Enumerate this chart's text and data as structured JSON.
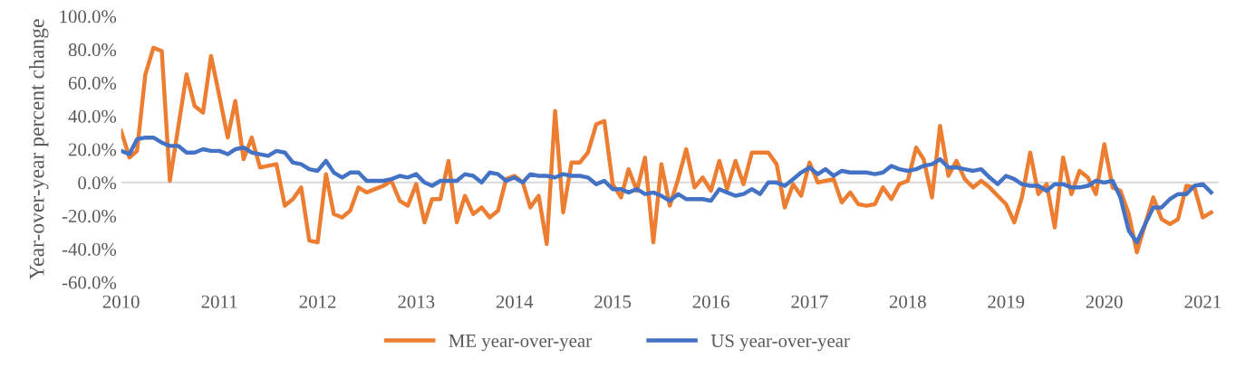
{
  "chart_data": {
    "type": "line",
    "ylabel": "Year-over-year percent change",
    "x": [
      "2010-01",
      "2010-02",
      "2010-03",
      "2010-04",
      "2010-05",
      "2010-06",
      "2010-07",
      "2010-08",
      "2010-09",
      "2010-10",
      "2010-11",
      "2010-12",
      "2011-01",
      "2011-02",
      "2011-03",
      "2011-04",
      "2011-05",
      "2011-06",
      "2011-07",
      "2011-08",
      "2011-09",
      "2011-10",
      "2011-11",
      "2011-12",
      "2012-01",
      "2012-02",
      "2012-03",
      "2012-04",
      "2012-05",
      "2012-06",
      "2012-07",
      "2012-08",
      "2012-09",
      "2012-10",
      "2012-11",
      "2012-12",
      "2013-01",
      "2013-02",
      "2013-03",
      "2013-04",
      "2013-05",
      "2013-06",
      "2013-07",
      "2013-08",
      "2013-09",
      "2013-10",
      "2013-11",
      "2013-12",
      "2014-01",
      "2014-02",
      "2014-03",
      "2014-04",
      "2014-05",
      "2014-06",
      "2014-07",
      "2014-08",
      "2014-09",
      "2014-10",
      "2014-11",
      "2014-12",
      "2015-01",
      "2015-02",
      "2015-03",
      "2015-04",
      "2015-05",
      "2015-06",
      "2015-07",
      "2015-08",
      "2015-09",
      "2015-10",
      "2015-11",
      "2015-12",
      "2016-01",
      "2016-02",
      "2016-03",
      "2016-04",
      "2016-05",
      "2016-06",
      "2016-07",
      "2016-08",
      "2016-09",
      "2016-10",
      "2016-11",
      "2016-12",
      "2017-01",
      "2017-02",
      "2017-03",
      "2017-04",
      "2017-05",
      "2017-06",
      "2017-07",
      "2017-08",
      "2017-09",
      "2017-10",
      "2017-11",
      "2017-12",
      "2018-01",
      "2018-02",
      "2018-03",
      "2018-04",
      "2018-05",
      "2018-06",
      "2018-07",
      "2018-08",
      "2018-09",
      "2018-10",
      "2018-11",
      "2018-12",
      "2019-01",
      "2019-02",
      "2019-03",
      "2019-04",
      "2019-05",
      "2019-06",
      "2019-07",
      "2019-08",
      "2019-09",
      "2019-10",
      "2019-11",
      "2019-12",
      "2020-01",
      "2020-02",
      "2020-03",
      "2020-04",
      "2020-05",
      "2020-06",
      "2020-07",
      "2020-08",
      "2020-09",
      "2020-10",
      "2020-11",
      "2020-12",
      "2021-01",
      "2021-02"
    ],
    "series": [
      {
        "name": "ME year-over-year",
        "color": "#ed7d31",
        "values": [
          31,
          15,
          19,
          65,
          81,
          79,
          1,
          33,
          65,
          46,
          42,
          76,
          52,
          27,
          49,
          14,
          27,
          9,
          10,
          11,
          -14,
          -10,
          -3,
          -35,
          -36,
          5,
          -19,
          -21,
          -17,
          -3,
          -6,
          -4,
          -2,
          1,
          -11,
          -14,
          -1,
          -24,
          -10,
          -10,
          13,
          -24,
          -8,
          -19,
          -15,
          -21,
          -17,
          2,
          4,
          0,
          -15,
          -8,
          -37,
          43,
          -18,
          12,
          12,
          18,
          35,
          37,
          -1,
          -9,
          8,
          -5,
          15,
          -36,
          11,
          -14,
          2,
          20,
          -3,
          3,
          -5,
          13,
          -4,
          13,
          -1,
          18,
          18,
          18,
          11,
          -15,
          -1,
          -8,
          12,
          0,
          1,
          2,
          -12,
          -6,
          -13,
          -14,
          -13,
          -3,
          -10,
          -1,
          1,
          21,
          14,
          -9,
          34,
          4,
          13,
          2,
          -3,
          1,
          -3,
          -8,
          -13,
          -24,
          -9,
          18,
          -7,
          -1,
          -27,
          15,
          -7,
          7,
          3,
          -7,
          23,
          -3,
          -5,
          -19,
          -42,
          -25,
          -9,
          -22,
          -25,
          -22,
          -2,
          -3,
          -21,
          -18
        ]
      },
      {
        "name": "US year-over-year",
        "color": "#4472c4",
        "values": [
          19,
          17,
          26,
          27,
          27,
          24,
          22,
          22,
          18,
          18,
          20,
          19,
          19,
          17,
          20,
          21,
          18,
          17,
          16,
          19,
          18,
          12,
          11,
          8,
          7,
          13,
          6,
          3,
          6,
          6,
          1,
          1,
          1,
          2,
          4,
          3,
          5,
          0,
          -2,
          1,
          1,
          1,
          5,
          4,
          0,
          6,
          5,
          1,
          3,
          0,
          5,
          4,
          4,
          3,
          5,
          4,
          4,
          3,
          -1,
          1,
          -4,
          -4,
          -6,
          -4,
          -7,
          -6,
          -8,
          -11,
          -7,
          -10,
          -10,
          -10,
          -11,
          -4,
          -6,
          -8,
          -7,
          -4,
          -7,
          0,
          0,
          -2,
          2,
          6,
          9,
          5,
          8,
          4,
          7,
          6,
          6,
          6,
          5,
          6,
          10,
          8,
          7,
          8,
          10,
          11,
          14,
          9,
          9,
          8,
          7,
          8,
          3,
          -1,
          4,
          2,
          -1,
          -2,
          -2,
          -5,
          -1,
          -1,
          -3,
          -3,
          -2,
          1,
          0,
          1,
          -9,
          -29,
          -36,
          -25,
          -15,
          -15,
          -10,
          -7,
          -7,
          -2,
          -1,
          -6
        ]
      }
    ],
    "ylim": [
      -60,
      100
    ],
    "yticks": [
      {
        "value": -60,
        "label": "-60.0%"
      },
      {
        "value": -40,
        "label": "-40.0%"
      },
      {
        "value": -20,
        "label": "-20.0%"
      },
      {
        "value": 0,
        "label": "0.0%"
      },
      {
        "value": 20,
        "label": "20.0%"
      },
      {
        "value": 40,
        "label": "40.0%"
      },
      {
        "value": 60,
        "label": "60.0%"
      },
      {
        "value": 80,
        "label": "80.0%"
      },
      {
        "value": 100,
        "label": "100.0%"
      }
    ],
    "xlim": [
      "2010-01",
      "2021-03"
    ],
    "xticks": [
      "2010",
      "2011",
      "2012",
      "2013",
      "2014",
      "2015",
      "2016",
      "2017",
      "2018",
      "2019",
      "2020",
      "2021"
    ],
    "ref_lines": [
      {
        "axis": "y",
        "value": 0,
        "color": "#d9d9d9"
      }
    ],
    "legend": "bottom",
    "marker": "none",
    "line_style": "solid",
    "grid": false
  }
}
